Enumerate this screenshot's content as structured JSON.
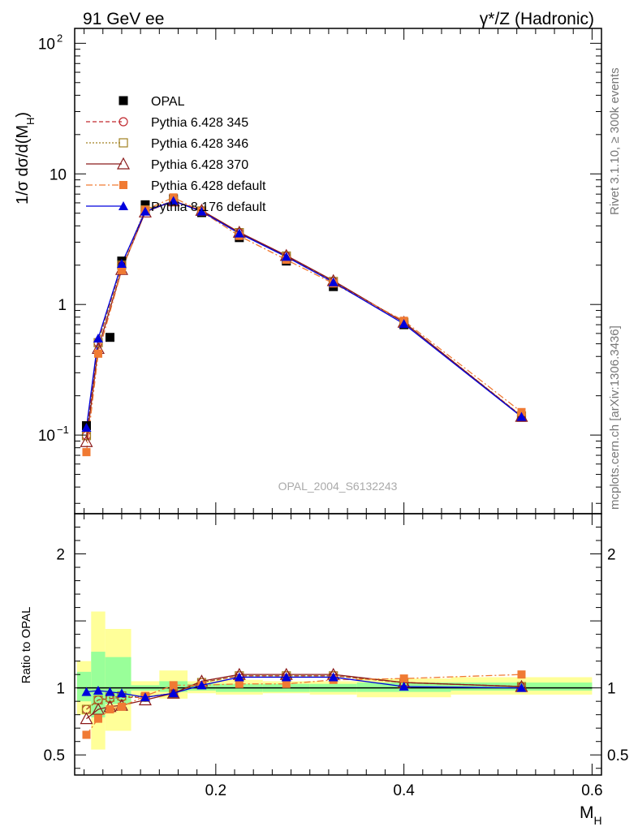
{
  "header": {
    "left": "91 GeV ee",
    "right": "γ*/Z (Hadronic)"
  },
  "side_text": {
    "rivet": "Rivet 3.1.10, ≥ 300k events",
    "mcplots": "mcplots.cern.ch [arXiv:1306.3436]"
  },
  "watermark": "OPAL_2004_S6132243",
  "chart_data": [
    {
      "type": "line",
      "title": "91 GeV ee",
      "ylabel": "1/σ dσ/d(M_H)",
      "yscale": "log",
      "ylim": [
        0.025,
        130
      ],
      "xlim": [
        0.05,
        0.61
      ],
      "y_ticks": [
        "10^-1",
        "1",
        "10",
        "10^2"
      ],
      "legend_position": "top-left",
      "series": [
        {
          "name": "OPAL",
          "color": "#000000",
          "marker": "square",
          "x": [
            0.0625,
            0.0875,
            0.1,
            0.125,
            0.155,
            0.185,
            0.225,
            0.275,
            0.325,
            0.4,
            0.525
          ],
          "y": [
            0.118,
            0.56,
            2.15,
            5.8,
            6.45,
            5.05,
            3.25,
            2.15,
            1.37,
            0.7,
            0.137
          ]
        },
        {
          "name": "Pythia 6.428 345",
          "color": "#c0292f",
          "marker": "circle-open",
          "x": [
            0.0625,
            0.075,
            0.1,
            0.125,
            0.155,
            0.185,
            0.225,
            0.275,
            0.325,
            0.4,
            0.525
          ],
          "y": [
            0.099,
            0.51,
            2.0,
            5.25,
            6.2,
            5.2,
            3.55,
            2.35,
            1.5,
            0.73,
            0.14
          ]
        },
        {
          "name": "Pythia 6.428 346",
          "color": "#a08020",
          "marker": "square-open",
          "x": [
            0.0625,
            0.075,
            0.1,
            0.125,
            0.155,
            0.185,
            0.225,
            0.275,
            0.325,
            0.4,
            0.525
          ],
          "y": [
            0.099,
            0.51,
            2.0,
            5.3,
            6.2,
            5.2,
            3.55,
            2.35,
            1.5,
            0.73,
            0.14
          ]
        },
        {
          "name": "Pythia 6.428 370",
          "color": "#8b1a1a",
          "marker": "triangle-open",
          "x": [
            0.0625,
            0.075,
            0.1,
            0.125,
            0.155,
            0.185,
            0.225,
            0.275,
            0.325,
            0.4,
            0.525
          ],
          "y": [
            0.089,
            0.46,
            1.85,
            5.1,
            6.2,
            5.25,
            3.57,
            2.37,
            1.52,
            0.73,
            0.139
          ]
        },
        {
          "name": "Pythia 6.428 default",
          "color": "#f07a33",
          "marker": "square",
          "x": [
            0.0625,
            0.075,
            0.1,
            0.125,
            0.155,
            0.185,
            0.225,
            0.275,
            0.325,
            0.4,
            0.525
          ],
          "y": [
            0.074,
            0.42,
            1.83,
            5.3,
            6.6,
            5.15,
            3.35,
            2.2,
            1.45,
            0.75,
            0.15
          ]
        },
        {
          "name": "Pythia 8.176 default",
          "color": "#0000dd",
          "marker": "triangle",
          "x": [
            0.0625,
            0.075,
            0.1,
            0.125,
            0.155,
            0.185,
            0.225,
            0.275,
            0.325,
            0.4,
            0.525
          ],
          "y": [
            0.114,
            0.55,
            2.05,
            5.15,
            6.2,
            5.15,
            3.5,
            2.32,
            1.48,
            0.71,
            0.138
          ]
        }
      ]
    },
    {
      "type": "line",
      "ylabel": "Ratio to OPAL",
      "xlabel": "M_H",
      "ylim": [
        0.35,
        2.3
      ],
      "xlim": [
        0.05,
        0.61
      ],
      "x_ticks": [
        0.2,
        0.4,
        0.6
      ],
      "y_ticks": [
        0.5,
        1,
        2
      ],
      "bands": [
        {
          "x0": 0.0525,
          "x1": 0.0675,
          "stat": [
            0.9,
            1.12
          ],
          "total": [
            0.8,
            1.2
          ]
        },
        {
          "x0": 0.0675,
          "x1": 0.0825,
          "stat": [
            0.78,
            1.27
          ],
          "total": [
            0.54,
            1.57
          ]
        },
        {
          "x0": 0.0825,
          "x1": 0.11,
          "stat": [
            0.88,
            1.23
          ],
          "total": [
            0.68,
            1.44
          ]
        },
        {
          "x0": 0.11,
          "x1": 0.14,
          "stat": [
            0.98,
            1.02
          ],
          "total": [
            0.94,
            1.05
          ]
        },
        {
          "x0": 0.14,
          "x1": 0.17,
          "stat": [
            0.97,
            1.05
          ],
          "total": [
            0.92,
            1.13
          ]
        },
        {
          "x0": 0.17,
          "x1": 0.2,
          "stat": [
            0.98,
            1.03
          ],
          "total": [
            0.96,
            1.05
          ]
        },
        {
          "x0": 0.2,
          "x1": 0.25,
          "stat": [
            0.97,
            1.03
          ],
          "total": [
            0.95,
            1.06
          ]
        },
        {
          "x0": 0.25,
          "x1": 0.3,
          "stat": [
            0.97,
            1.03
          ],
          "total": [
            0.96,
            1.05
          ]
        },
        {
          "x0": 0.3,
          "x1": 0.35,
          "stat": [
            0.97,
            1.03
          ],
          "total": [
            0.95,
            1.05
          ]
        },
        {
          "x0": 0.35,
          "x1": 0.45,
          "stat": [
            0.97,
            1.04
          ],
          "total": [
            0.93,
            1.07
          ]
        },
        {
          "x0": 0.45,
          "x1": 0.6,
          "stat": [
            0.98,
            1.04
          ],
          "total": [
            0.95,
            1.08
          ]
        }
      ],
      "series": [
        {
          "name": "Pythia 6.428 345",
          "color": "#c0292f",
          "marker": "circle-open",
          "x": [
            0.0625,
            0.075,
            0.0875,
            0.1,
            0.125,
            0.155,
            0.185,
            0.225,
            0.275,
            0.325,
            0.4,
            0.525
          ],
          "y": [
            0.84,
            0.91,
            0.92,
            0.93,
            0.93,
            0.96,
            1.04,
            1.09,
            1.09,
            1.09,
            1.04,
            1.01
          ]
        },
        {
          "name": "Pythia 6.428 346",
          "color": "#a08020",
          "marker": "square-open",
          "x": [
            0.0625,
            0.075,
            0.0875,
            0.1,
            0.125,
            0.155,
            0.185,
            0.225,
            0.275,
            0.325,
            0.4,
            0.525
          ],
          "y": [
            0.84,
            0.91,
            0.93,
            0.94,
            0.93,
            0.96,
            1.04,
            1.09,
            1.09,
            1.09,
            1.04,
            1.01
          ]
        },
        {
          "name": "Pythia 6.428 370",
          "color": "#8b1a1a",
          "marker": "triangle-open",
          "x": [
            0.0625,
            0.075,
            0.0875,
            0.1,
            0.125,
            0.155,
            0.185,
            0.225,
            0.275,
            0.325,
            0.4,
            0.525
          ],
          "y": [
            0.77,
            0.84,
            0.86,
            0.87,
            0.91,
            0.96,
            1.05,
            1.1,
            1.1,
            1.1,
            1.04,
            1.01
          ]
        },
        {
          "name": "Pythia 6.428 default",
          "color": "#f07a33",
          "marker": "square",
          "x": [
            0.0625,
            0.075,
            0.0875,
            0.1,
            0.125,
            0.155,
            0.185,
            0.225,
            0.275,
            0.325,
            0.4,
            0.525
          ],
          "y": [
            0.65,
            0.77,
            0.84,
            0.86,
            0.94,
            1.02,
            1.02,
            1.03,
            1.03,
            1.06,
            1.07,
            1.1
          ]
        },
        {
          "name": "Pythia 8.176 default",
          "color": "#0000dd",
          "marker": "triangle",
          "x": [
            0.0625,
            0.075,
            0.0875,
            0.1,
            0.125,
            0.155,
            0.185,
            0.225,
            0.275,
            0.325,
            0.4,
            0.525
          ],
          "y": [
            0.97,
            0.98,
            0.97,
            0.96,
            0.93,
            0.96,
            1.02,
            1.08,
            1.08,
            1.08,
            1.01,
            1.0
          ]
        }
      ]
    }
  ]
}
